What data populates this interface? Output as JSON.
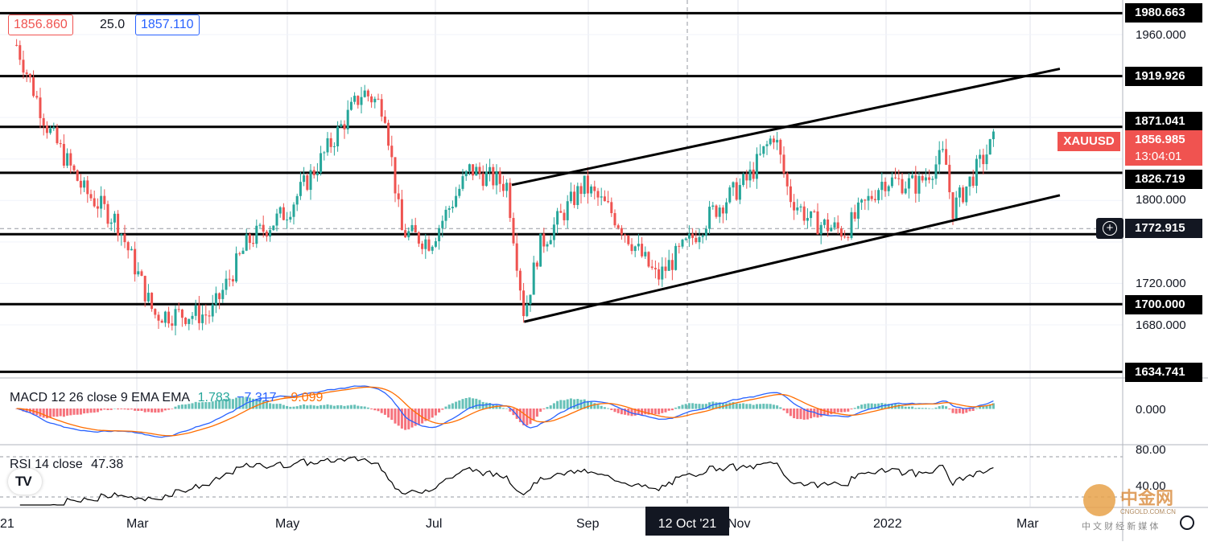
{
  "header": {
    "bid": "1856.860",
    "spread": "25.0",
    "ask": "1857.110"
  },
  "symbol": {
    "name": "XAUUSD",
    "price": "1856.985",
    "countdown": "13:04:01",
    "color": "#f05350"
  },
  "crosshair": {
    "price": "1772.915",
    "date": "12 Oct '21"
  },
  "price_scale": [
    "1960.000",
    "1800.000",
    "1720.000",
    "1680.000"
  ],
  "horizontal_levels": [
    "1980.663",
    "1919.926",
    "1871.041",
    "1826.719",
    "1700.000",
    "1634.741"
  ],
  "x_axis": [
    "21",
    "Mar",
    "May",
    "Jul",
    "Sep",
    "Nov",
    "2022",
    "Mar"
  ],
  "macd": {
    "label": "MACD 12 26 close 9 EMA EMA",
    "hist": "1.783",
    "macd": "−7.317",
    "signal": "−9.099",
    "scale": "0.000",
    "colors": {
      "macd": "#2962ff",
      "signal": "#ff6d00",
      "hist_up": "#26a69a",
      "hist_down": "#f23645"
    }
  },
  "rsi": {
    "label": "RSI 14 close",
    "value": "47.38",
    "scale_top": "80.00",
    "scale_mid": "40.00"
  },
  "watermark": {
    "brand": "中金网",
    "url": "CNGOLD.COM.CN",
    "tagline": "中 文 财 经 新 媒 体",
    "tv_logo": "TradingView"
  },
  "chart_data": {
    "type": "candlestick",
    "symbol": "XAUUSD",
    "x": [
      "2021-01",
      "2021-03",
      "2021-05",
      "2021-07",
      "2021-09",
      "2021-11",
      "2022-01",
      "2022-03"
    ],
    "close_path": [
      [
        "2021-01-06",
        1950
      ],
      [
        "2021-01-20",
        1870
      ],
      [
        "2021-02-05",
        1810
      ],
      [
        "2021-02-20",
        1780
      ],
      [
        "2021-03-08",
        1690
      ],
      [
        "2021-03-31",
        1690
      ],
      [
        "2021-04-15",
        1760
      ],
      [
        "2021-05-01",
        1790
      ],
      [
        "2021-05-15",
        1840
      ],
      [
        "2021-06-01",
        1905
      ],
      [
        "2021-06-10",
        1890
      ],
      [
        "2021-06-17",
        1770
      ],
      [
        "2021-06-29",
        1760
      ],
      [
        "2021-07-15",
        1830
      ],
      [
        "2021-07-30",
        1815
      ],
      [
        "2021-08-06",
        1690
      ],
      [
        "2021-08-12",
        1755
      ],
      [
        "2021-08-30",
        1815
      ],
      [
        "2021-09-10",
        1790
      ],
      [
        "2021-09-29",
        1725
      ],
      [
        "2021-10-12",
        1760
      ],
      [
        "2021-10-22",
        1790
      ],
      [
        "2021-11-05",
        1820
      ],
      [
        "2021-11-16",
        1865
      ],
      [
        "2021-11-22",
        1805
      ],
      [
        "2021-12-01",
        1780
      ],
      [
        "2021-12-15",
        1770
      ],
      [
        "2021-12-31",
        1820
      ],
      [
        "2022-01-14",
        1815
      ],
      [
        "2022-01-25",
        1845
      ],
      [
        "2022-01-28",
        1790
      ],
      [
        "2022-02-14",
        1857
      ]
    ],
    "levels": [
      1980.663,
      1919.926,
      1871.041,
      1826.719,
      1772.915,
      1700.0,
      1634.741
    ],
    "channel_upper": [
      [
        "2021-08-01",
        1815
      ],
      [
        "2022-02-28",
        1927
      ]
    ],
    "channel_lower": [
      [
        "2021-08-06",
        1683
      ],
      [
        "2022-02-28",
        1805
      ]
    ],
    "ylim": [
      1634.741,
      1990
    ],
    "macd_values": {
      "histogram": 1.783,
      "macd": -7.317,
      "signal": -9.099
    },
    "rsi_value": 47.38,
    "rsi_range": [
      20,
      80
    ]
  }
}
